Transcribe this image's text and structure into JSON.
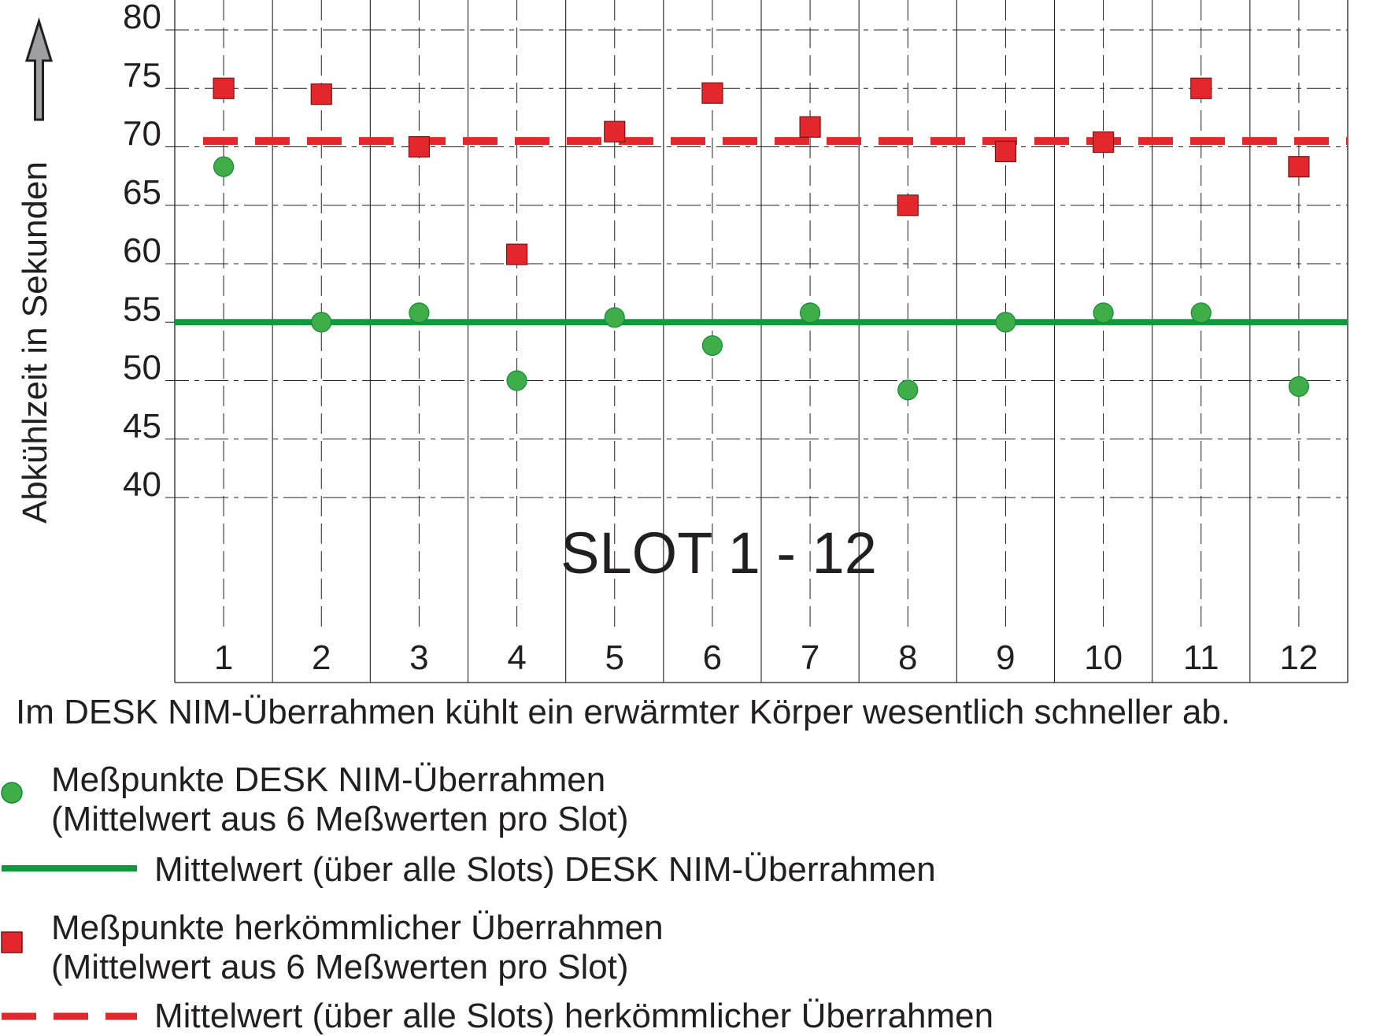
{
  "chart_data": {
    "type": "scatter",
    "title": "SLOT 1 - 12",
    "ylabel": "Abkühlzeit in Sekunden",
    "xlabel": "",
    "categories": [
      "1",
      "2",
      "3",
      "4",
      "5",
      "6",
      "7",
      "8",
      "9",
      "10",
      "11",
      "12"
    ],
    "y_ticks": [
      "80",
      "75",
      "70",
      "65",
      "60",
      "55",
      "50",
      "45",
      "40"
    ],
    "ylim": [
      40,
      80
    ],
    "grid": true,
    "series": [
      {
        "name": "Meßpunkte DESK NIM-Überrahmen",
        "marker": "circle",
        "color": "#3fae49",
        "values": [
          68.3,
          55.0,
          55.8,
          50.0,
          55.4,
          53.0,
          55.8,
          49.2,
          55.0,
          55.8,
          55.8,
          49.5
        ]
      },
      {
        "name": "Meßpunkte herkömmlicher Überrahmen",
        "marker": "square",
        "color": "#e3272d",
        "values": [
          75.0,
          74.5,
          70.0,
          60.8,
          71.3,
          74.6,
          71.7,
          65.0,
          69.6,
          70.4,
          75.0,
          68.3
        ]
      }
    ],
    "reference_lines": [
      {
        "name": "Mittelwert (über alle Slots) DESK NIM-Überrahmen",
        "value": 55.0,
        "style": "solid",
        "color": "#119a3c"
      },
      {
        "name": "Mittelwert (über alle Slots) herkömmlicher Überrahmen",
        "value": 70.5,
        "style": "dashed",
        "color": "#e3272d"
      }
    ]
  },
  "caption": "Im DESK NIM-Überrahmen kühlt ein erwärmter Körper wesentlich schneller ab.",
  "legend": {
    "green_points_line1": "Meßpunkte DESK NIM-Überrahmen",
    "green_points_line2": "(Mittelwert aus 6 Meßwerten pro Slot)",
    "green_mean": "Mittelwert (über alle Slots) DESK NIM-Überrahmen",
    "red_points_line1": "Meßpunkte herkömmlicher Überrahmen",
    "red_points_line2": "(Mittelwert aus 6 Meßwerten pro Slot)",
    "red_mean": "Mittelwert (über alle Slots) herkömmlicher Überrahmen"
  },
  "colors": {
    "green_marker": "#3fae49",
    "green_line": "#119a3c",
    "red_marker": "#e3272d",
    "text": "#231f20"
  }
}
